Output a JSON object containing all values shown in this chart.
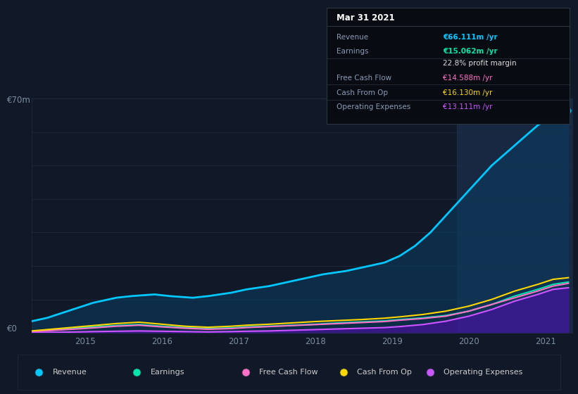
{
  "bg_color": "#111827",
  "plot_bg_color": "#111827",
  "table_bg_color": "#080c12",
  "ylabel_top": "€70m",
  "ylabel_bottom": "€0",
  "x_ticks": [
    2015,
    2016,
    2017,
    2018,
    2019,
    2020,
    2021
  ],
  "table": {
    "title": "Mar 31 2021",
    "rows": [
      {
        "label": "Revenue",
        "value": "€66.111m /yr",
        "value_color": "#00c8ff"
      },
      {
        "label": "Earnings",
        "value": "€15.062m /yr",
        "value_color": "#00e5aa"
      },
      {
        "label": "",
        "value": "22.8% profit margin",
        "value_color": "#dddddd"
      },
      {
        "label": "Free Cash Flow",
        "value": "€14.588m /yr",
        "value_color": "#ff6ec7"
      },
      {
        "label": "Cash From Op",
        "value": "€16.130m /yr",
        "value_color": "#ffd700"
      },
      {
        "label": "Operating Expenses",
        "value": "€13.111m /yr",
        "value_color": "#cc55ff"
      }
    ]
  },
  "legend": [
    {
      "label": "Revenue",
      "color": "#00c8ff"
    },
    {
      "label": "Earnings",
      "color": "#00e5aa"
    },
    {
      "label": "Free Cash Flow",
      "color": "#ff6ec7"
    },
    {
      "label": "Cash From Op",
      "color": "#ffd700"
    },
    {
      "label": "Operating Expenses",
      "color": "#cc55ff"
    }
  ],
  "revenue_x": [
    2014.3,
    2014.5,
    2014.7,
    2014.9,
    2015.1,
    2015.4,
    2015.6,
    2015.9,
    2016.1,
    2016.4,
    2016.6,
    2016.9,
    2017.1,
    2017.4,
    2017.6,
    2017.9,
    2018.1,
    2018.4,
    2018.6,
    2018.9,
    2019.1,
    2019.3,
    2019.5,
    2019.7,
    2019.9,
    2020.1,
    2020.3,
    2020.5,
    2020.7,
    2020.9,
    2021.1,
    2021.3
  ],
  "revenue_y": [
    3.5,
    4.5,
    6.0,
    7.5,
    9.0,
    10.5,
    11.0,
    11.5,
    11.0,
    10.5,
    11.0,
    12.0,
    13.0,
    14.0,
    15.0,
    16.5,
    17.5,
    18.5,
    19.5,
    21.0,
    23.0,
    26.0,
    30.0,
    35.0,
    40.0,
    45.0,
    50.0,
    54.0,
    58.0,
    62.0,
    65.0,
    66.5
  ],
  "earnings_x": [
    2014.3,
    2014.6,
    2014.9,
    2015.1,
    2015.4,
    2015.7,
    2016.0,
    2016.3,
    2016.6,
    2016.9,
    2017.1,
    2017.4,
    2017.7,
    2018.0,
    2018.3,
    2018.6,
    2018.9,
    2019.1,
    2019.4,
    2019.7,
    2020.0,
    2020.3,
    2020.6,
    2020.9,
    2021.1,
    2021.3
  ],
  "earnings_y": [
    0.5,
    1.0,
    1.5,
    1.8,
    2.2,
    2.5,
    2.0,
    1.6,
    1.3,
    1.5,
    1.8,
    2.0,
    2.3,
    2.6,
    3.0,
    3.3,
    3.6,
    4.0,
    4.5,
    5.2,
    6.5,
    8.5,
    11.0,
    13.0,
    14.5,
    15.2
  ],
  "fcf_x": [
    2014.3,
    2014.6,
    2014.9,
    2015.1,
    2015.4,
    2015.7,
    2016.0,
    2016.3,
    2016.6,
    2016.9,
    2017.1,
    2017.4,
    2017.7,
    2018.0,
    2018.3,
    2018.6,
    2018.9,
    2019.1,
    2019.4,
    2019.7,
    2020.0,
    2020.3,
    2020.6,
    2020.9,
    2021.1,
    2021.3
  ],
  "fcf_y": [
    0.3,
    0.8,
    1.2,
    1.5,
    2.0,
    2.3,
    1.8,
    1.4,
    1.1,
    1.3,
    1.6,
    1.9,
    2.2,
    2.5,
    2.8,
    3.1,
    3.4,
    3.8,
    4.3,
    5.0,
    6.5,
    8.5,
    10.5,
    12.5,
    14.0,
    14.8
  ],
  "cashfromop_x": [
    2014.3,
    2014.6,
    2014.9,
    2015.1,
    2015.4,
    2015.7,
    2016.0,
    2016.3,
    2016.6,
    2016.9,
    2017.1,
    2017.4,
    2017.7,
    2018.0,
    2018.3,
    2018.6,
    2018.9,
    2019.1,
    2019.4,
    2019.7,
    2020.0,
    2020.3,
    2020.6,
    2020.9,
    2021.1,
    2021.3
  ],
  "cashfromop_y": [
    0.6,
    1.2,
    1.8,
    2.2,
    2.8,
    3.2,
    2.6,
    2.0,
    1.7,
    2.0,
    2.3,
    2.6,
    3.0,
    3.4,
    3.7,
    4.0,
    4.4,
    4.8,
    5.5,
    6.5,
    8.0,
    10.0,
    12.5,
    14.5,
    16.0,
    16.5
  ],
  "opex_x": [
    2014.3,
    2014.6,
    2014.9,
    2015.1,
    2015.4,
    2015.7,
    2016.0,
    2016.3,
    2016.6,
    2016.9,
    2017.1,
    2017.4,
    2017.7,
    2018.0,
    2018.3,
    2018.6,
    2018.9,
    2019.1,
    2019.4,
    2019.7,
    2020.0,
    2020.3,
    2020.6,
    2020.9,
    2021.1,
    2021.3
  ],
  "opex_y": [
    0.1,
    0.2,
    0.3,
    0.4,
    0.5,
    0.6,
    0.5,
    0.4,
    0.3,
    0.4,
    0.5,
    0.6,
    0.8,
    1.0,
    1.2,
    1.4,
    1.6,
    1.9,
    2.5,
    3.5,
    5.0,
    7.0,
    9.5,
    11.5,
    13.0,
    13.5
  ],
  "highlight_x_start": 2019.85,
  "highlight_x_end": 2021.35,
  "ylim": [
    0,
    70
  ],
  "xlim": [
    2014.3,
    2021.35
  ],
  "revenue_fill_alpha": 0.55,
  "opex_fill_alpha": 0.45
}
